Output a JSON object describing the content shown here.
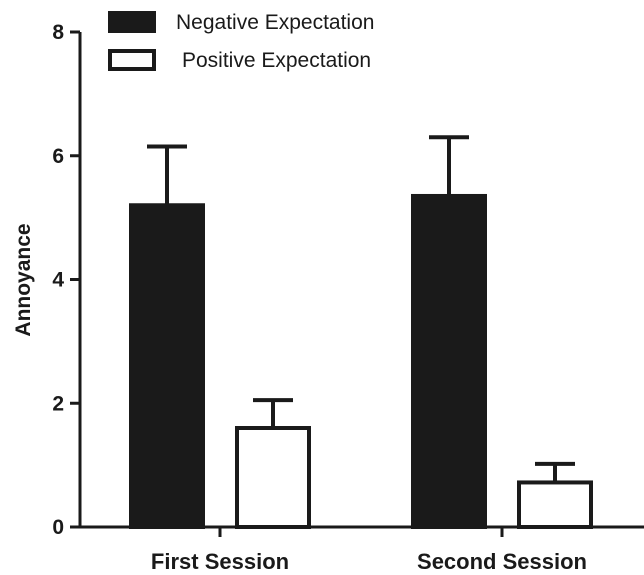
{
  "chart_data": {
    "type": "bar",
    "title": "",
    "xlabel": "",
    "ylabel": "Annoyance",
    "ylim": [
      0,
      8
    ],
    "yticks": [
      0,
      2,
      4,
      6,
      8
    ],
    "categories": [
      "First Session",
      "Second Session"
    ],
    "series": [
      {
        "name": "Negative Expectation",
        "values": [
          5.2,
          5.35
        ],
        "error": [
          0.95,
          0.95
        ],
        "fill": "#1a1a1a"
      },
      {
        "name": "Positive Expectation",
        "values": [
          1.6,
          0.72
        ],
        "error": [
          0.45,
          0.3
        ],
        "fill": "#ffffff"
      }
    ],
    "grid": false,
    "legend_position": "top-left",
    "colors": {
      "ink": "#1a1a1a",
      "background": "#ffffff"
    }
  }
}
